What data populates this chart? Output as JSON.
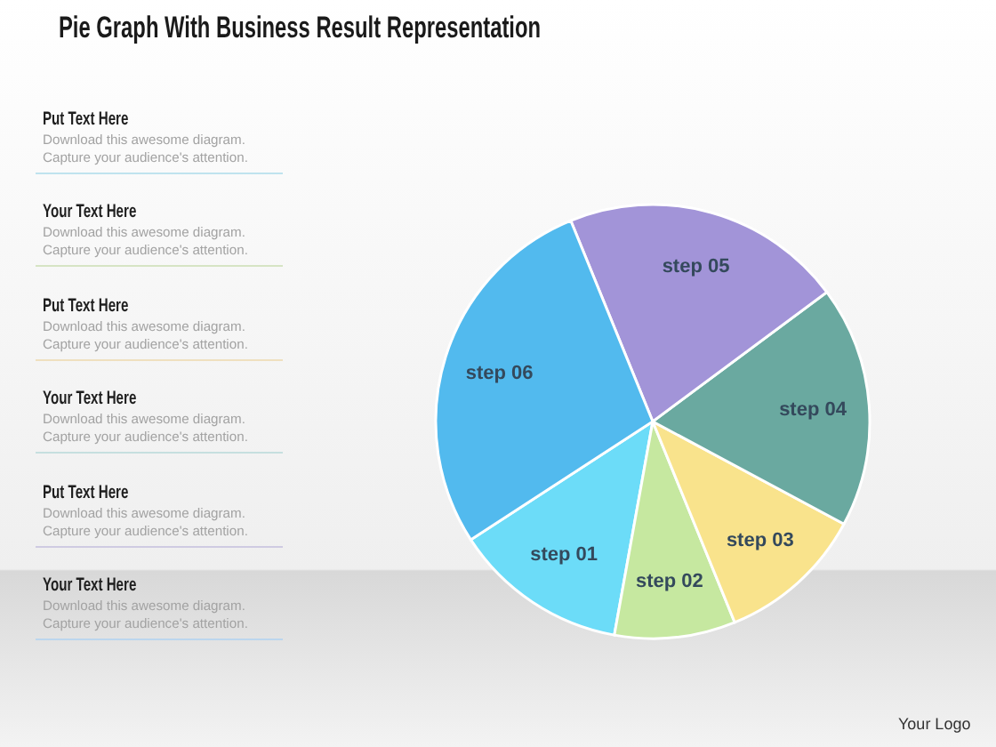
{
  "chart_data": {
    "type": "pie",
    "title": "Pie Graph With Business Result Representation",
    "categories": [
      "step 01",
      "step 02",
      "step 03",
      "step 04",
      "step 05",
      "step 06"
    ],
    "values": [
      13,
      9,
      11,
      18,
      21,
      28
    ],
    "colors": [
      "#6cdcf8",
      "#c6e8a0",
      "#f9e38c",
      "#6aa9a0",
      "#a294d8",
      "#52baee"
    ],
    "annotations": [
      "Put Text Here",
      "Download this awesome diagram.",
      "Capture your audience's attention.",
      "Your Text Here",
      "Download this awesome diagram.",
      "Capture your audience's attention.",
      "Put Text Here",
      "Download this awesome diagram.",
      "Capture your audience's attention.",
      "Your Text Here",
      "Download this awesome diagram.",
      "Capture your audience's attention.",
      "Put Text Here",
      "Download this awesome diagram.",
      "Capture your audience's attention.",
      "Your Text Here",
      "Download this awesome diagram.",
      "Capture your audience's attention.",
      "Your Logo"
    ]
  }
}
